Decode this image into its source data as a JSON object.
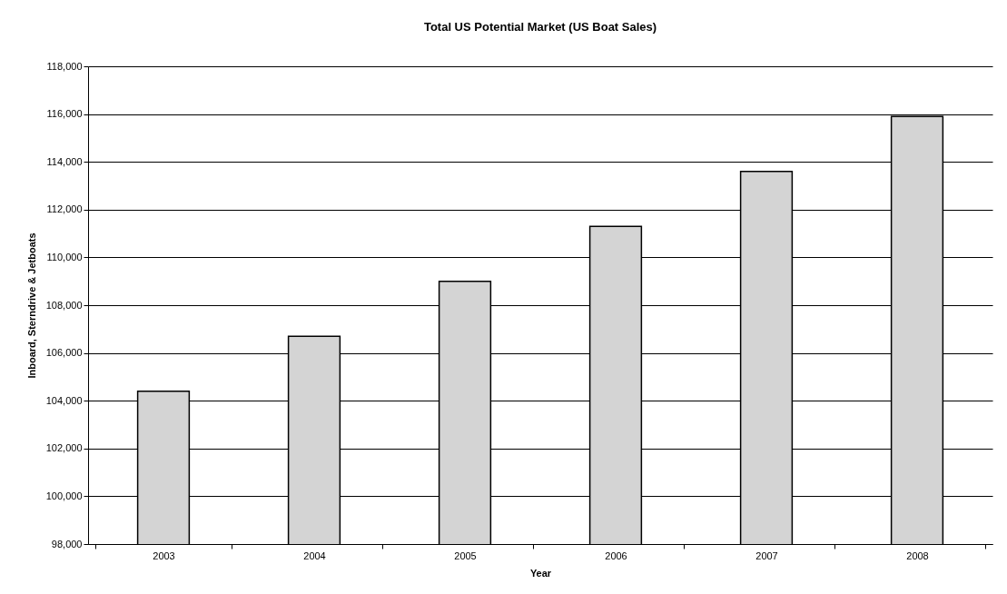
{
  "chart_data": {
    "type": "bar",
    "title": "Total US Potential Market (US Boat Sales)",
    "xlabel": "Year",
    "ylabel": "Inboard, Sterndrive & Jetboats",
    "categories": [
      "2003",
      "2004",
      "2005",
      "2006",
      "2007",
      "2008"
    ],
    "values": [
      104400,
      106700,
      109000,
      111300,
      113600,
      115900
    ],
    "color": "#d4d4d4",
    "ylim": [
      98000,
      118000
    ],
    "yticks": [
      {
        "value": 98000,
        "label": "98,000"
      },
      {
        "value": 100000,
        "label": "100,000"
      },
      {
        "value": 102000,
        "label": "102,000"
      },
      {
        "value": 104000,
        "label": "104,000"
      },
      {
        "value": 106000,
        "label": "106,000"
      },
      {
        "value": 108000,
        "label": "108,000"
      },
      {
        "value": 110000,
        "label": "110,000"
      },
      {
        "value": 112000,
        "label": "112,000"
      },
      {
        "value": 114000,
        "label": "114,000"
      },
      {
        "value": 116000,
        "label": "116,000"
      },
      {
        "value": 118000,
        "label": "118,000"
      }
    ],
    "grid": "y"
  }
}
